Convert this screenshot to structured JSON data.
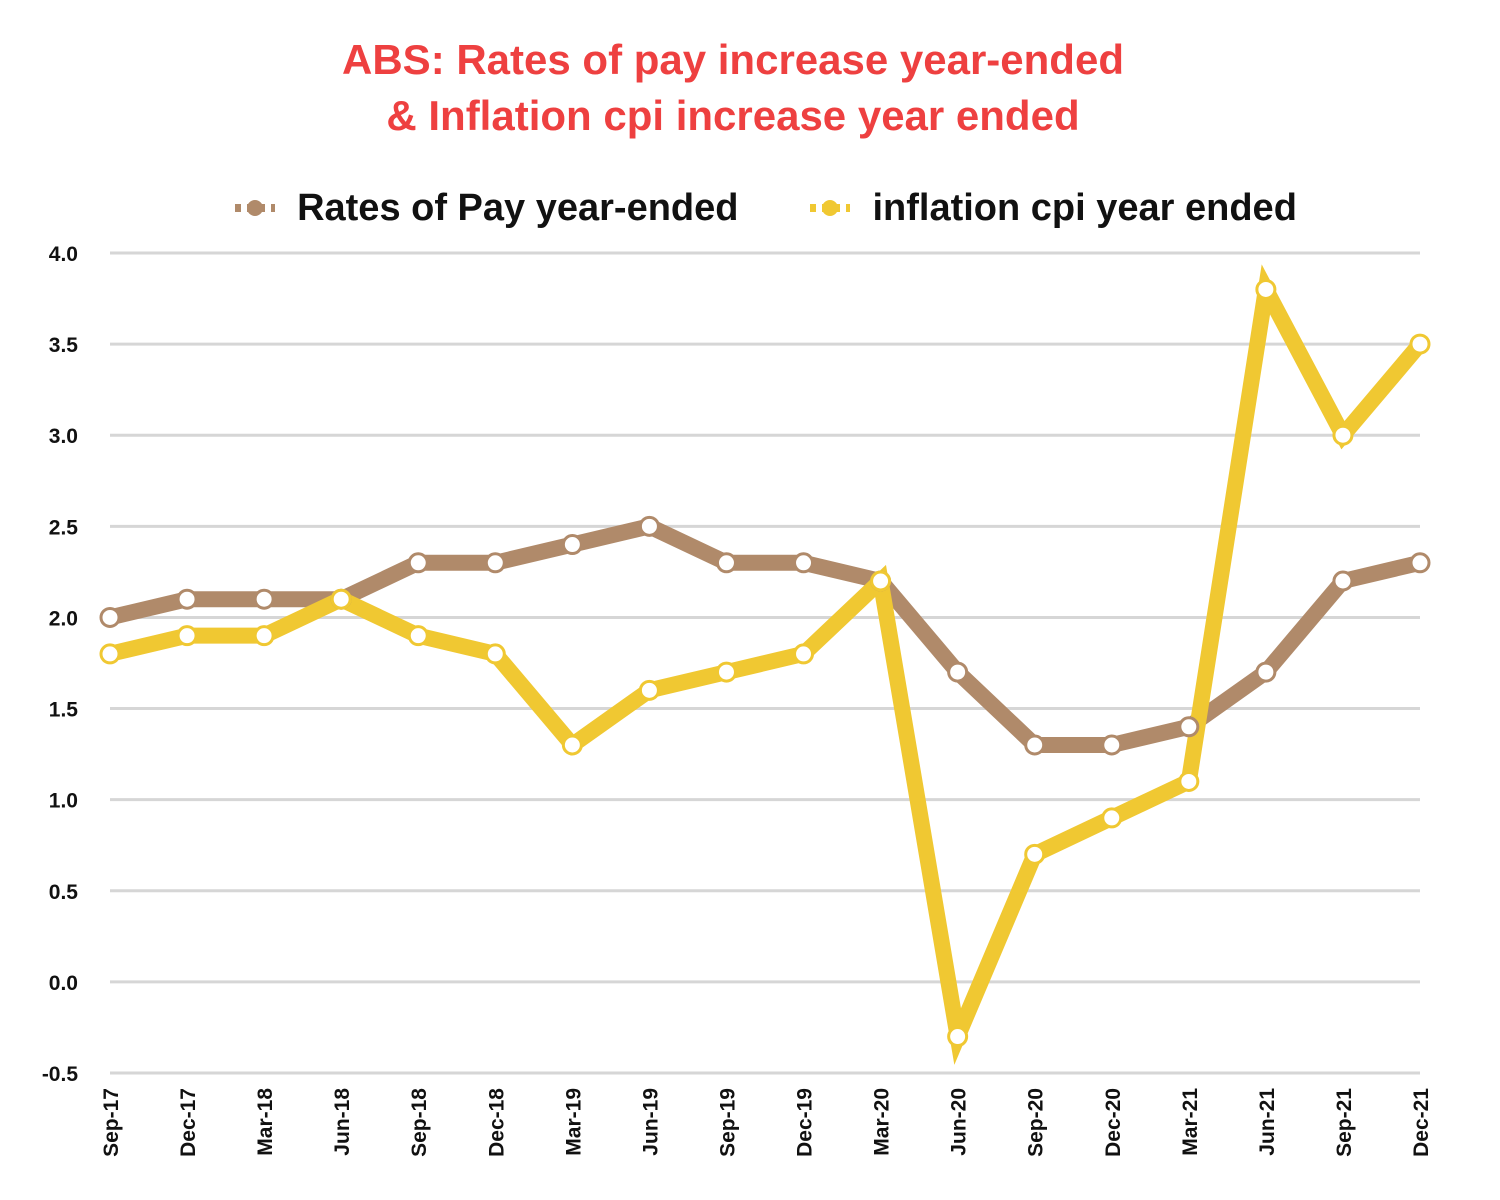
{
  "title_lines": [
    "ABS: Rates of pay increase year-ended",
    "& Inflation cpi increase year ended"
  ],
  "colors": {
    "title": "#ee4040",
    "pay": "#b08a6a",
    "cpi": "#f0c832",
    "grid": "#d6d6d6",
    "marker_fill": "#ffffff"
  },
  "chart_data": {
    "type": "line",
    "title": "ABS: Rates of pay increase year-ended & Inflation cpi increase year ended",
    "xlabel": "",
    "ylabel": "",
    "categories": [
      "Sep-17",
      "Dec-17",
      "Mar-18",
      "Jun-18",
      "Sep-18",
      "Dec-18",
      "Mar-19",
      "Jun-19",
      "Sep-19",
      "Dec-19",
      "Mar-20",
      "Jun-20",
      "Sep-20",
      "Dec-20",
      "Mar-21",
      "Jun-21",
      "Sep-21",
      "Dec-21"
    ],
    "ylim": [
      -0.5,
      4.0
    ],
    "yticks": [
      "4.0",
      "3.5",
      "3.0",
      "2.5",
      "2.0",
      "1.5",
      "1.0",
      "0.5",
      "0.0",
      "-0.5"
    ],
    "grid": true,
    "legend_position": "top-center",
    "series": [
      {
        "name": "Rates of Pay year-ended",
        "color_key": "pay",
        "values": [
          2.0,
          2.1,
          2.1,
          2.1,
          2.3,
          2.3,
          2.4,
          2.5,
          2.3,
          2.3,
          2.2,
          1.7,
          1.3,
          1.3,
          1.4,
          1.7,
          2.2,
          2.3
        ]
      },
      {
        "name": "inflation cpi year ended",
        "color_key": "cpi",
        "values": [
          1.8,
          1.9,
          1.9,
          2.1,
          1.9,
          1.8,
          1.3,
          1.6,
          1.7,
          1.8,
          2.2,
          -0.3,
          0.7,
          0.9,
          1.1,
          3.8,
          3.0,
          3.5
        ]
      }
    ]
  }
}
